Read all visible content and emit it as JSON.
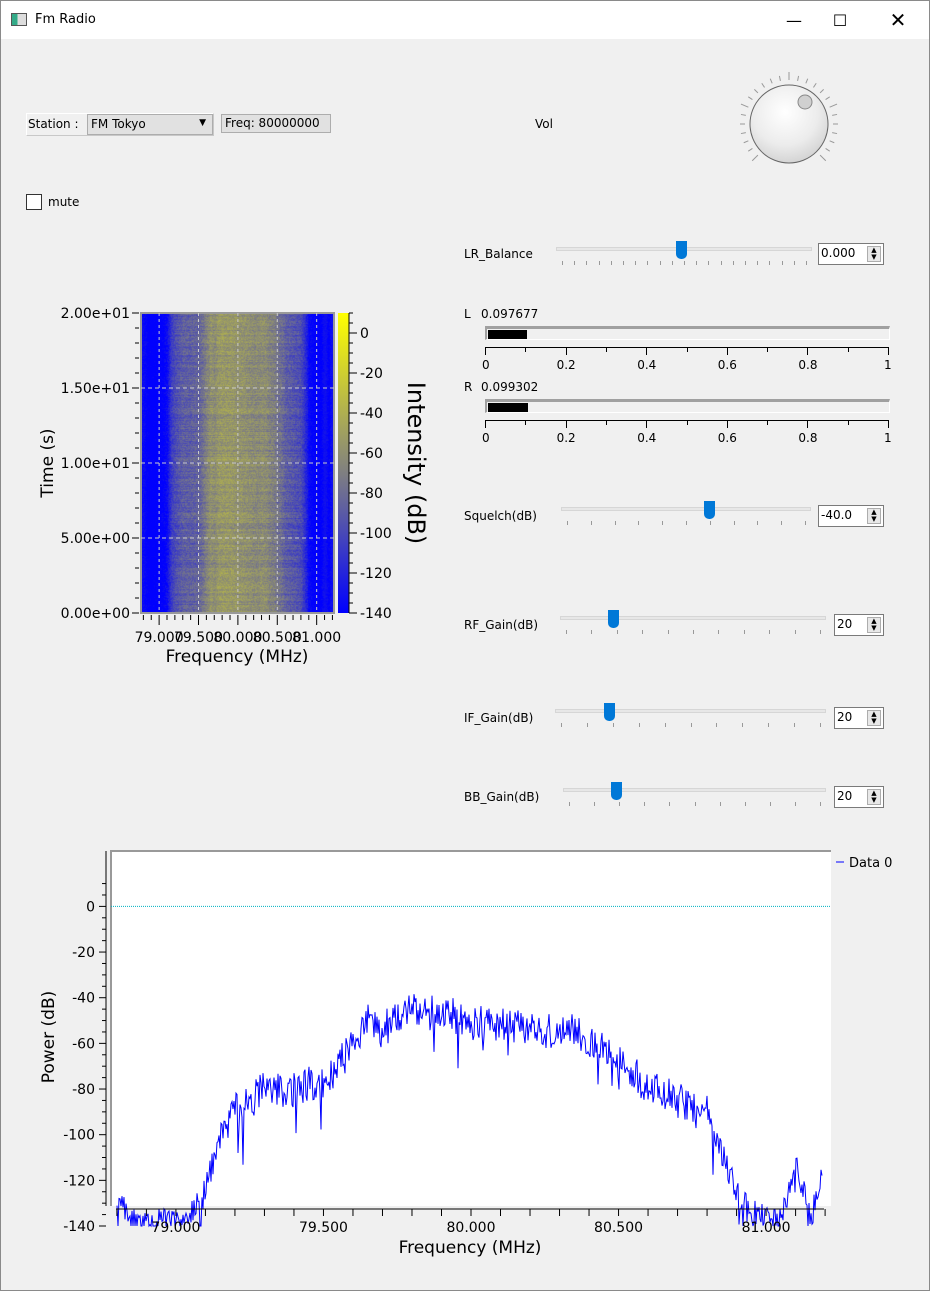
{
  "window": {
    "title": "Fm Radio",
    "controls": [
      "minimize",
      "maximize",
      "close"
    ]
  },
  "station": {
    "label": "Station :",
    "selected": "FM Tokyo"
  },
  "freq_button": "Freq: 80000000",
  "volume": {
    "label": "Vol",
    "knob_level": 0.85
  },
  "mute": {
    "label": "mute",
    "checked": false
  },
  "lr_balance": {
    "label": "LR_Balance",
    "value": "0.000",
    "position": 0.49
  },
  "levels": [
    {
      "label": "L",
      "value": "0.097677",
      "fraction": 0.097677
    },
    {
      "label": "R",
      "value": "0.099302",
      "fraction": 0.099302
    }
  ],
  "level_ticks": [
    "0",
    "0.2",
    "0.4",
    "0.6",
    "0.8",
    "1"
  ],
  "controls": [
    {
      "label": "Squelch(dB)",
      "value": "-40.0",
      "position": 0.59
    },
    {
      "label": "RF_Gain(dB)",
      "value": "20",
      "position": 0.2
    },
    {
      "label": "IF_Gain(dB)",
      "value": "20",
      "position": 0.2
    },
    {
      "label": "BB_Gain(dB)",
      "value": "20",
      "position": 0.2
    }
  ],
  "chart_data": [
    {
      "type": "heatmap",
      "xlabel": "Frequency (MHz)",
      "ylabel": "Time (s)",
      "xlim": [
        78.77,
        81.22
      ],
      "ylim": [
        0,
        20
      ],
      "xticks": [
        "79.000",
        "79.500",
        "80.000",
        "80.500",
        "81.000"
      ],
      "yticks": [
        "0.00e+00",
        "5.00e+00",
        "1.00e+01",
        "1.50e+01",
        "2.00e+01"
      ],
      "grid": true,
      "colorbar": {
        "label": "Intensity (dB)",
        "range": [
          -140,
          10
        ],
        "ticks": [
          "0",
          "-20",
          "-40",
          "-60",
          "-80",
          "-100",
          "-120",
          "-140"
        ],
        "colors": [
          "#0000ff",
          "#808080",
          "#ffff00"
        ]
      }
    },
    {
      "type": "line",
      "xlabel": "Frequency (MHz)",
      "ylabel": "Power (dB)",
      "xlim": [
        78.78,
        81.22
      ],
      "ylim": [
        -140,
        12
      ],
      "xticks": [
        "79.000",
        "79.500",
        "80.000",
        "80.500",
        "81.000"
      ],
      "yticks": [
        "0",
        "-20",
        "-40",
        "-60",
        "-80",
        "-100",
        "-120",
        "-140"
      ],
      "legend": {
        "position": "top-right",
        "entries": [
          "Data 0"
        ]
      },
      "reference_line": {
        "y": 0,
        "color": "#00b0c0"
      },
      "series": [
        {
          "name": "Data 0",
          "color": "#0000ff",
          "x": [
            78.8,
            78.85,
            78.9,
            78.95,
            79.0,
            79.05,
            79.1,
            79.15,
            79.2,
            79.25,
            79.3,
            79.35,
            79.4,
            79.45,
            79.5,
            79.55,
            79.6,
            79.65,
            79.7,
            79.75,
            79.8,
            79.85,
            79.9,
            79.95,
            80.0,
            80.05,
            80.1,
            80.15,
            80.2,
            80.25,
            80.3,
            80.35,
            80.4,
            80.45,
            80.5,
            80.55,
            80.6,
            80.65,
            80.7,
            80.75,
            80.8,
            80.85,
            80.9,
            80.95,
            81.0,
            81.05,
            81.1,
            81.15,
            81.2
          ],
          "y": [
            -125,
            -138,
            -140,
            -138,
            -138,
            -135,
            -125,
            -100,
            -90,
            -85,
            -80,
            -80,
            -80,
            -78,
            -78,
            -70,
            -60,
            -50,
            -55,
            -47,
            -46,
            -47,
            -46,
            -48,
            -50,
            -50,
            -52,
            -53,
            -55,
            -55,
            -53,
            -54,
            -60,
            -62,
            -68,
            -72,
            -80,
            -82,
            -85,
            -88,
            -90,
            -108,
            -125,
            -135,
            -135,
            -138,
            -110,
            -138,
            -110
          ]
        }
      ]
    }
  ]
}
